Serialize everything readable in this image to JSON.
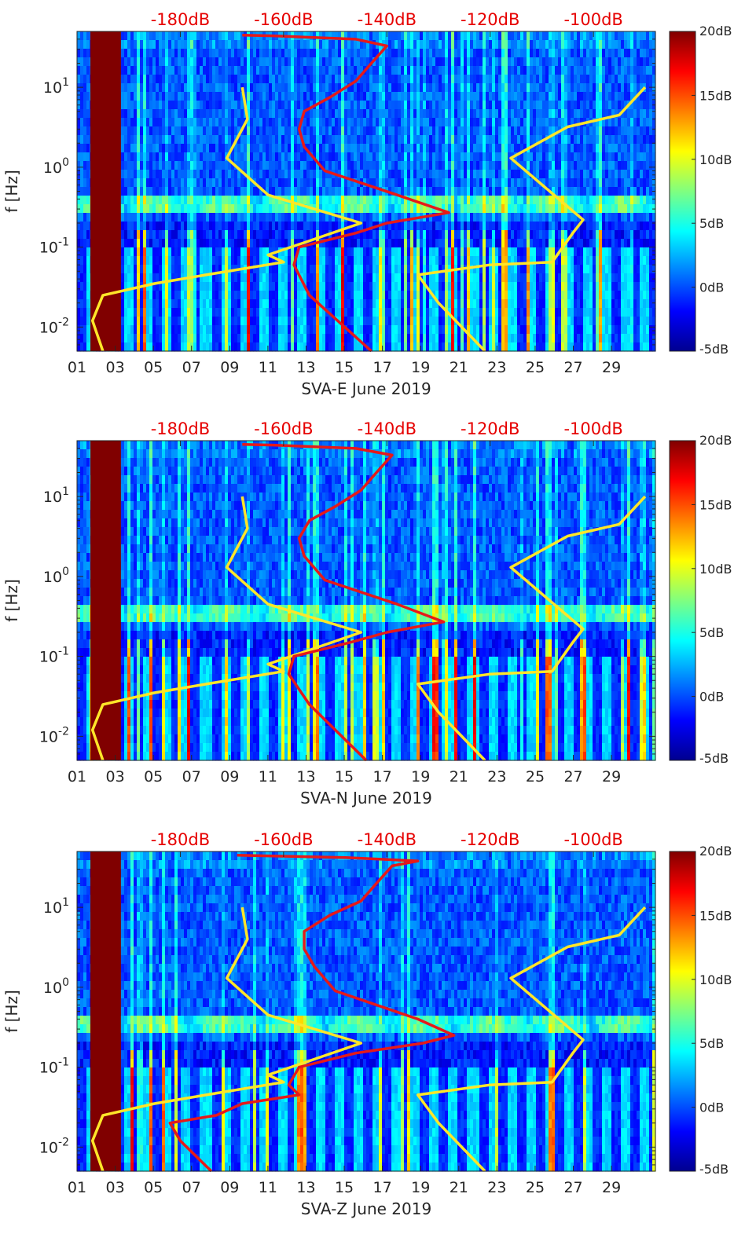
{
  "chart_data": [
    {
      "type": "heatmap",
      "xlabel": "SVA-E June 2019",
      "ylabel": "f [Hz]",
      "x_ticks": [
        "01",
        "03",
        "05",
        "07",
        "09",
        "11",
        "13",
        "15",
        "17",
        "19",
        "21",
        "23",
        "25",
        "27",
        "29"
      ],
      "y_ticks": [
        {
          "exp": "-2",
          "value": 0.01
        },
        {
          "exp": "-1",
          "value": 0.1
        },
        {
          "exp": "0",
          "value": 1
        },
        {
          "exp": "1",
          "value": 10
        }
      ],
      "ylim": [
        0.005,
        50
      ],
      "y_scale": "log",
      "top_axis_ticks": [
        "-180dB",
        "-160dB",
        "-140dB",
        "-120dB",
        "-100dB"
      ],
      "colorbar_ticks": [
        "20dB",
        "15dB",
        "10dB",
        "5dB",
        "0dB",
        "-5dB"
      ],
      "colorbar_range": [
        -5,
        20
      ],
      "gap_days": [
        1.7,
        3.3
      ],
      "series": [
        {
          "color": "#ffe629",
          "points": [
            [
              -195,
              0.005
            ],
            [
              -197,
              0.012
            ],
            [
              -195,
              0.025
            ],
            [
              -185,
              0.035
            ],
            [
              -175,
              0.045
            ],
            [
              -160,
              0.065
            ],
            [
              -163,
              0.08
            ],
            [
              -155,
              0.12
            ],
            [
              -145,
              0.2
            ],
            [
              -163,
              0.45
            ],
            [
              -171,
              1.3
            ],
            [
              -167,
              4
            ],
            [
              -168,
              10
            ]
          ]
        },
        {
          "color": "#ffe629",
          "points": [
            [
              -121,
              0.005
            ],
            [
              -130,
              0.02
            ],
            [
              -134,
              0.045
            ],
            [
              -120,
              0.06
            ],
            [
              -108,
              0.065
            ],
            [
              -104,
              0.15
            ],
            [
              -102,
              0.22
            ],
            [
              -116,
              1.3
            ],
            [
              -105,
              3.2
            ],
            [
              -95,
              4.5
            ],
            [
              -90,
              10
            ]
          ]
        },
        {
          "color": "#e61919",
          "points": [
            [
              -143,
              0.005
            ],
            [
              -155,
              0.025
            ],
            [
              -158,
              0.06
            ],
            [
              -157,
              0.1
            ],
            [
              -146,
              0.15
            ],
            [
              -140,
              0.2
            ],
            [
              -128,
              0.27
            ],
            [
              -138,
              0.45
            ],
            [
              -152,
              0.9
            ],
            [
              -156,
              1.8
            ],
            [
              -157,
              3
            ],
            [
              -156,
              5
            ],
            [
              -151,
              7.5
            ],
            [
              -146,
              12
            ],
            [
              -143,
              20
            ],
            [
              -140,
              33
            ],
            [
              -146,
              40
            ],
            [
              -162,
              44
            ],
            [
              -168,
              45
            ]
          ]
        }
      ]
    },
    {
      "type": "heatmap",
      "xlabel": "SVA-N June 2019",
      "ylabel": "f [Hz]",
      "x_ticks": [
        "01",
        "03",
        "05",
        "07",
        "09",
        "11",
        "13",
        "15",
        "17",
        "19",
        "21",
        "23",
        "25",
        "27",
        "29"
      ],
      "y_ticks": [
        {
          "exp": "-2",
          "value": 0.01
        },
        {
          "exp": "-1",
          "value": 0.1
        },
        {
          "exp": "0",
          "value": 1
        },
        {
          "exp": "1",
          "value": 10
        }
      ],
      "ylim": [
        0.005,
        50
      ],
      "y_scale": "log",
      "top_axis_ticks": [
        "-180dB",
        "-160dB",
        "-140dB",
        "-120dB",
        "-100dB"
      ],
      "colorbar_ticks": [
        "20dB",
        "15dB",
        "10dB",
        "5dB",
        "0dB",
        "-5dB"
      ],
      "colorbar_range": [
        -5,
        20
      ],
      "gap_days": [
        1.7,
        3.3
      ],
      "series": [
        {
          "color": "#ffe629",
          "points": [
            [
              -195,
              0.005
            ],
            [
              -197,
              0.012
            ],
            [
              -195,
              0.025
            ],
            [
              -185,
              0.035
            ],
            [
              -175,
              0.045
            ],
            [
              -160,
              0.065
            ],
            [
              -163,
              0.08
            ],
            [
              -155,
              0.12
            ],
            [
              -145,
              0.2
            ],
            [
              -163,
              0.45
            ],
            [
              -171,
              1.3
            ],
            [
              -167,
              4
            ],
            [
              -168,
              10
            ]
          ]
        },
        {
          "color": "#ffe629",
          "points": [
            [
              -121,
              0.005
            ],
            [
              -130,
              0.02
            ],
            [
              -134,
              0.045
            ],
            [
              -120,
              0.06
            ],
            [
              -108,
              0.065
            ],
            [
              -104,
              0.15
            ],
            [
              -102,
              0.22
            ],
            [
              -116,
              1.3
            ],
            [
              -105,
              3.2
            ],
            [
              -95,
              4.5
            ],
            [
              -90,
              10
            ]
          ]
        },
        {
          "color": "#e61919",
          "points": [
            [
              -144,
              0.005
            ],
            [
              -155,
              0.025
            ],
            [
              -159,
              0.06
            ],
            [
              -158,
              0.1
            ],
            [
              -147,
              0.15
            ],
            [
              -140,
              0.2
            ],
            [
              -129,
              0.27
            ],
            [
              -138,
              0.45
            ],
            [
              -152,
              0.9
            ],
            [
              -156,
              1.8
            ],
            [
              -157,
              3
            ],
            [
              -155,
              5
            ],
            [
              -150,
              7.5
            ],
            [
              -145,
              12
            ],
            [
              -142,
              20
            ],
            [
              -139,
              33
            ],
            [
              -146,
              40
            ],
            [
              -162,
              44
            ],
            [
              -168,
              45
            ]
          ]
        }
      ]
    },
    {
      "type": "heatmap",
      "xlabel": "SVA-Z June 2019",
      "ylabel": "f [Hz]",
      "x_ticks": [
        "01",
        "03",
        "05",
        "07",
        "09",
        "11",
        "13",
        "15",
        "17",
        "19",
        "21",
        "23",
        "25",
        "27",
        "29"
      ],
      "y_ticks": [
        {
          "exp": "-2",
          "value": 0.01
        },
        {
          "exp": "-1",
          "value": 0.1
        },
        {
          "exp": "0",
          "value": 1
        },
        {
          "exp": "1",
          "value": 10
        }
      ],
      "ylim": [
        0.005,
        50
      ],
      "y_scale": "log",
      "top_axis_ticks": [
        "-180dB",
        "-160dB",
        "-140dB",
        "-120dB",
        "-100dB"
      ],
      "colorbar_ticks": [
        "20dB",
        "15dB",
        "10dB",
        "5dB",
        "0dB",
        "-5dB"
      ],
      "colorbar_range": [
        -5,
        20
      ],
      "gap_days": [
        1.7,
        3.3
      ],
      "series": [
        {
          "color": "#ffe629",
          "points": [
            [
              -195,
              0.005
            ],
            [
              -197,
              0.012
            ],
            [
              -195,
              0.025
            ],
            [
              -185,
              0.035
            ],
            [
              -175,
              0.045
            ],
            [
              -160,
              0.065
            ],
            [
              -163,
              0.08
            ],
            [
              -155,
              0.12
            ],
            [
              -145,
              0.2
            ],
            [
              -163,
              0.45
            ],
            [
              -171,
              1.3
            ],
            [
              -167,
              4
            ],
            [
              -168,
              10
            ]
          ]
        },
        {
          "color": "#ffe629",
          "points": [
            [
              -121,
              0.005
            ],
            [
              -130,
              0.02
            ],
            [
              -134,
              0.045
            ],
            [
              -120,
              0.06
            ],
            [
              -108,
              0.065
            ],
            [
              -104,
              0.15
            ],
            [
              -102,
              0.22
            ],
            [
              -116,
              1.3
            ],
            [
              -105,
              3.2
            ],
            [
              -95,
              4.5
            ],
            [
              -90,
              10
            ]
          ]
        },
        {
          "color": "#e61919",
          "points": [
            [
              -174,
              0.005
            ],
            [
              -180,
              0.012
            ],
            [
              -182,
              0.02
            ],
            [
              -173,
              0.025
            ],
            [
              -168,
              0.035
            ],
            [
              -157,
              0.045
            ],
            [
              -159,
              0.06
            ],
            [
              -157,
              0.1
            ],
            [
              -146,
              0.15
            ],
            [
              -133,
              0.2
            ],
            [
              -127,
              0.25
            ],
            [
              -134,
              0.4
            ],
            [
              -150,
              0.9
            ],
            [
              -154,
              1.8
            ],
            [
              -156,
              3
            ],
            [
              -156,
              5
            ],
            [
              -151,
              8
            ],
            [
              -145,
              12
            ],
            [
              -142,
              20
            ],
            [
              -139,
              33
            ],
            [
              -134,
              38
            ],
            [
              -148,
              42
            ],
            [
              -163,
              44
            ],
            [
              -169,
              45
            ]
          ]
        }
      ]
    }
  ]
}
